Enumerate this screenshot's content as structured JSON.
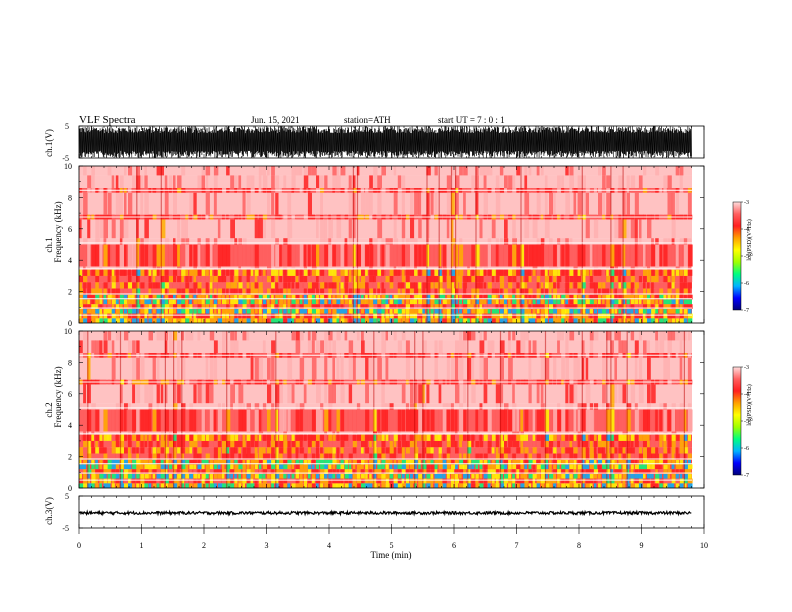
{
  "header": {
    "title": "VLF  Spectra",
    "date": "Jun. 15, 2021",
    "station": "station=ATH",
    "start_ut": "start  UT  =   7 : 0  : 1"
  },
  "colors": {
    "background": "#ffffff",
    "trace": "#000000",
    "spectrogram_base": "#ff5050",
    "colormap": [
      "#00007a",
      "#0000ff",
      "#00b4ff",
      "#00ff80",
      "#a0ff00",
      "#ffff00",
      "#ffa000",
      "#ff2020",
      "#ff6060",
      "#ffdddd"
    ]
  },
  "chart_data": [
    {
      "type": "line",
      "name": "ch1-waveform",
      "ylabel": "ch.1(V)",
      "ylim": [
        -5,
        5
      ],
      "y_ticks": [
        "5",
        "-5"
      ],
      "xlim": [
        0,
        10
      ],
      "description_values": {
        "amplitude_min": -5,
        "amplitude_max": 5
      }
    },
    {
      "type": "heatmap",
      "name": "ch1-spectrogram",
      "ylabel_line1": "ch.1",
      "ylabel_line2": "Frequency  (kHz)",
      "ylim": [
        0,
        10
      ],
      "y_ticks": [
        "0",
        "2",
        "4",
        "6",
        "8",
        "10"
      ],
      "xlim": [
        0,
        10
      ],
      "colorbar": {
        "label": "log(PSD)(V²/Hz)",
        "range": [
          -7,
          -3
        ],
        "ticks": [
          "-3",
          "-4",
          "-5",
          "-6",
          "-7"
        ]
      }
    },
    {
      "type": "heatmap",
      "name": "ch2-spectrogram",
      "ylabel_line1": "ch.2",
      "ylabel_line2": "Frequency  (kHz)",
      "ylim": [
        0,
        10
      ],
      "y_ticks": [
        "0",
        "2",
        "4",
        "6",
        "8",
        "10"
      ],
      "xlim": [
        0,
        10
      ],
      "colorbar": {
        "label": "log(PSD)(V²/Hz)",
        "range": [
          -7,
          -3
        ],
        "ticks": [
          "-3",
          "-4",
          "-5",
          "-6",
          "-7"
        ]
      }
    },
    {
      "type": "line",
      "name": "ch3-waveform",
      "ylabel": "ch.3(V)",
      "ylim": [
        -5,
        5
      ],
      "y_ticks": [
        "5",
        "0",
        "-5"
      ],
      "xlim": [
        0,
        10
      ],
      "xlabel": "Time  (min)",
      "x_ticks": [
        "0",
        "1",
        "2",
        "3",
        "4",
        "5",
        "6",
        "7",
        "8",
        "9",
        "10"
      ],
      "description_values": {
        "level": -0.3
      }
    }
  ]
}
